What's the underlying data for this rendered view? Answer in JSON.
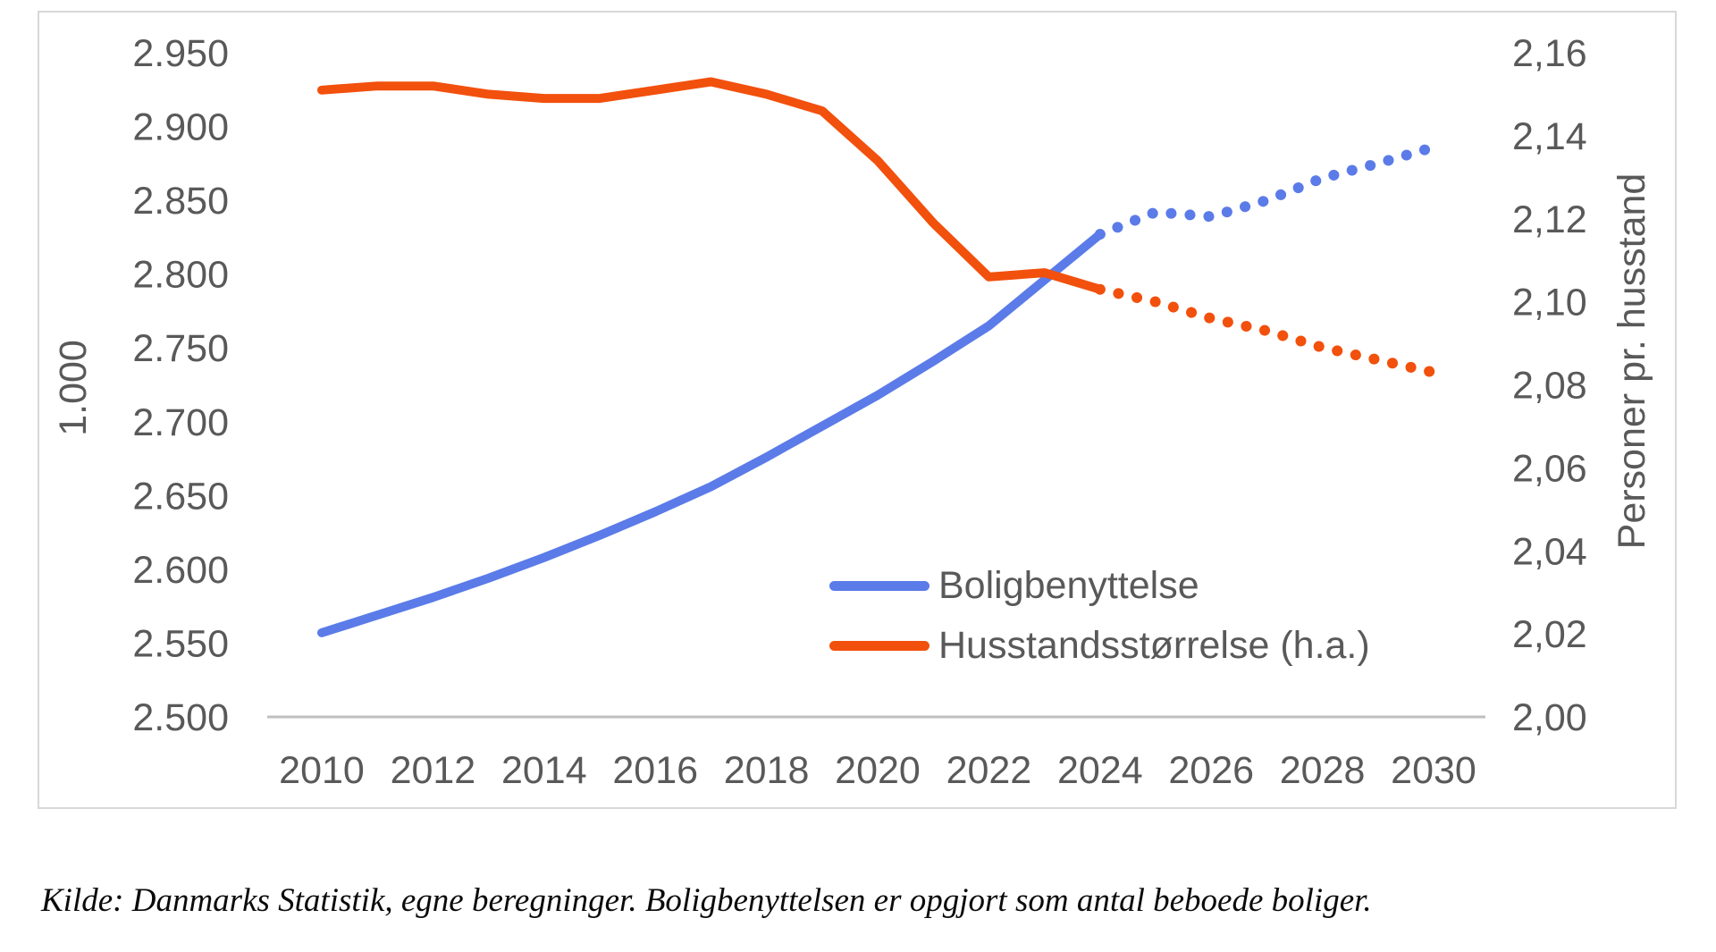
{
  "page": {
    "caption": "Kilde: Danmarks Statistik, egne beregninger. Boligbenyttelsen er opgjort som antal beboede boliger."
  },
  "colors": {
    "blue_series": "#5b7be8",
    "orange_series": "#f2500d",
    "axis_line": "#bfbfbf",
    "tick_text": "#595959",
    "card_border": "#d8d8d8"
  },
  "chart_data": {
    "type": "line",
    "title": "",
    "x": [
      2010,
      2011,
      2012,
      2013,
      2014,
      2015,
      2016,
      2017,
      2018,
      2019,
      2020,
      2021,
      2022,
      2023,
      2024,
      2025,
      2026,
      2027,
      2028,
      2029,
      2030
    ],
    "x_tick_labels": [
      "2010",
      "2012",
      "2014",
      "2016",
      "2018",
      "2020",
      "2022",
      "2024",
      "2026",
      "2028",
      "2030"
    ],
    "series": [
      {
        "name": "Boligbenyttelse",
        "axis": "left",
        "color": "#5b7be8",
        "style_note": "solid until 2024, dotted forecast 2024-2030",
        "solid_until": 2024,
        "values": [
          2557,
          2569,
          2581,
          2594,
          2608,
          2623,
          2639,
          2656,
          2676,
          2697,
          2718,
          2741,
          2765,
          2796,
          2827,
          2842,
          2839,
          2850,
          2865,
          2875,
          2886
        ]
      },
      {
        "name": "Husstandsstørrelse (h.a.)",
        "axis": "right",
        "color": "#f2500d",
        "style_note": "solid until 2024, dotted forecast 2024-2030",
        "solid_until": 2024,
        "values": [
          2.151,
          2.152,
          2.152,
          2.15,
          2.149,
          2.149,
          2.151,
          2.153,
          2.15,
          2.146,
          2.134,
          2.119,
          2.106,
          2.107,
          2.103,
          2.1,
          2.096,
          2.093,
          2.089,
          2.086,
          2.083
        ]
      }
    ],
    "left_axis": {
      "title": "1.000",
      "min": 2500,
      "max": 2950,
      "tick_labels": [
        "2.950",
        "2.900",
        "2.850",
        "2.800",
        "2.750",
        "2.700",
        "2.650",
        "2.600",
        "2.550",
        "2.500"
      ]
    },
    "right_axis": {
      "title": "Personer pr. husstand",
      "min": 2.0,
      "max": 2.16,
      "tick_labels": [
        "2,16",
        "2,14",
        "2,12",
        "2,10",
        "2,08",
        "2,06",
        "2,04",
        "2,02",
        "2,00"
      ]
    },
    "legend_position": "inside-bottom-right",
    "grid": false
  }
}
